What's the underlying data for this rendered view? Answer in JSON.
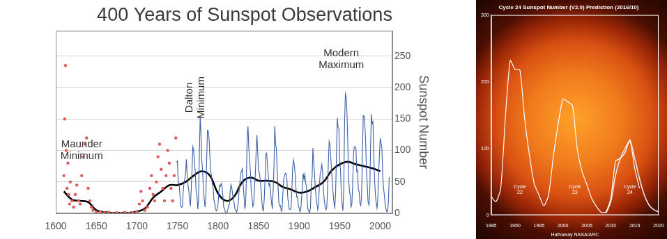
{
  "chart_data": [
    {
      "type": "line",
      "title": "400 Years of Sunspot Observations",
      "y_label": "Sunspot Number",
      "xlim": [
        1600,
        2015
      ],
      "xticks": [
        1600,
        1650,
        1700,
        1750,
        1800,
        1850,
        1900,
        1950,
        2000
      ],
      "ylim": [
        0,
        290
      ],
      "yticks": [
        0,
        50,
        100,
        150,
        200,
        250
      ],
      "grid": true,
      "annotations": [
        {
          "text": "Maunder Minimum",
          "x": 1632,
          "y": 100
        },
        {
          "text": "Dalton Minimum",
          "x": 1772,
          "y": 184
        },
        {
          "text": "Modern Maximum",
          "x": 1952,
          "y": 245
        }
      ],
      "series": [
        {
          "type": "scatter",
          "color": "#e05a5a",
          "marker": "circle",
          "x": [
            1610,
            1611,
            1612,
            1613,
            1614,
            1615,
            1616,
            1617,
            1618,
            1620,
            1622,
            1624,
            1626,
            1628,
            1630,
            1632,
            1634,
            1636,
            1638,
            1640,
            1642,
            1644,
            1646,
            1650,
            1655,
            1660,
            1665,
            1670,
            1675,
            1680,
            1685,
            1690,
            1695,
            1700,
            1703,
            1705,
            1707,
            1710,
            1713,
            1716,
            1718,
            1720,
            1722,
            1724,
            1726,
            1728,
            1730,
            1732,
            1734,
            1736,
            1738,
            1740,
            1742,
            1744,
            1746,
            1748
          ],
          "values": [
            60,
            150,
            235,
            100,
            40,
            80,
            30,
            15,
            50,
            20,
            10,
            30,
            45,
            20,
            15,
            60,
            90,
            110,
            120,
            40,
            20,
            10,
            5,
            2,
            3,
            1,
            2,
            0,
            1,
            0,
            2,
            0,
            1,
            3,
            15,
            35,
            20,
            5,
            10,
            40,
            60,
            30,
            20,
            50,
            90,
            110,
            70,
            40,
            20,
            60,
            100,
            80,
            40,
            20,
            60,
            120
          ]
        },
        {
          "type": "line",
          "color": "#3d5fa8",
          "x": [
            1749,
            1750,
            1751,
            1752,
            1753,
            1754,
            1755,
            1756,
            1757,
            1758,
            1759,
            1760,
            1761,
            1762,
            1763,
            1764,
            1765,
            1766,
            1767,
            1768,
            1769,
            1770,
            1771,
            1772,
            1773,
            1774,
            1775,
            1776,
            1777,
            1778,
            1779,
            1780,
            1781,
            1782,
            1783,
            1784,
            1785,
            1786,
            1787,
            1788,
            1789,
            1790,
            1791,
            1792,
            1793,
            1794,
            1795,
            1796,
            1797,
            1798,
            1799,
            1800,
            1801,
            1802,
            1803,
            1804,
            1805,
            1806,
            1807,
            1808,
            1809,
            1810,
            1811,
            1812,
            1813,
            1814,
            1815,
            1816,
            1817,
            1818,
            1819,
            1820,
            1821,
            1822,
            1823,
            1824,
            1825,
            1826,
            1827,
            1828,
            1829,
            1830,
            1831,
            1832,
            1833,
            1834,
            1835,
            1836,
            1837,
            1838,
            1839,
            1840,
            1841,
            1842,
            1843,
            1844,
            1845,
            1846,
            1847,
            1848,
            1849,
            1850,
            1851,
            1852,
            1853,
            1854,
            1855,
            1856,
            1857,
            1858,
            1859,
            1860,
            1861,
            1862,
            1863,
            1864,
            1865,
            1866,
            1867,
            1868,
            1869,
            1870,
            1871,
            1872,
            1873,
            1874,
            1875,
            1876,
            1877,
            1878,
            1879,
            1880,
            1881,
            1882,
            1883,
            1884,
            1885,
            1886,
            1887,
            1888,
            1889,
            1890,
            1891,
            1892,
            1893,
            1894,
            1895,
            1896,
            1897,
            1898,
            1899,
            1900,
            1901,
            1902,
            1903,
            1904,
            1905,
            1906,
            1907,
            1908,
            1909,
            1910,
            1911,
            1912,
            1913,
            1914,
            1915,
            1916,
            1917,
            1918,
            1919,
            1920,
            1921,
            1922,
            1923,
            1924,
            1925,
            1926,
            1927,
            1928,
            1929,
            1930,
            1931,
            1932,
            1933,
            1934,
            1935,
            1936,
            1937,
            1938,
            1939,
            1940,
            1941,
            1942,
            1943,
            1944,
            1945,
            1946,
            1947,
            1948,
            1949,
            1950,
            1951,
            1952,
            1953,
            1954,
            1955,
            1956,
            1957,
            1958,
            1959,
            1960,
            1961,
            1962,
            1963,
            1964,
            1965,
            1966,
            1967,
            1968,
            1969,
            1970,
            1971,
            1972,
            1973,
            1974,
            1975,
            1976,
            1977,
            1978,
            1979,
            1980,
            1981,
            1982,
            1983,
            1984,
            1985,
            1986,
            1987,
            1988,
            1989,
            1990,
            1991,
            1992,
            1993,
            1994,
            1995,
            1996,
            1997,
            1998,
            1999,
            2000,
            2001,
            2002,
            2003,
            2004,
            2005,
            2006,
            2007,
            2008,
            2009,
            2010,
            2011,
            2012
          ],
          "values": [
            80.9,
            83.4,
            47.7,
            47.8,
            30.7,
            12.2,
            9.6,
            10.2,
            32.4,
            47.6,
            54.0,
            62.9,
            85.9,
            61.2,
            45.1,
            36.4,
            20.9,
            11.4,
            37.8,
            69.8,
            106.1,
            100.8,
            81.6,
            66.5,
            34.8,
            30.6,
            7.0,
            19.8,
            92.5,
            154.4,
            125.9,
            84.8,
            68.1,
            38.5,
            22.8,
            10.2,
            24.1,
            82.9,
            132.0,
            130.9,
            118.1,
            89.9,
            66.6,
            60.0,
            46.9,
            41.0,
            21.3,
            16.0,
            6.4,
            4.1,
            6.8,
            14.5,
            34.0,
            45.0,
            43.1,
            47.5,
            42.2,
            28.1,
            10.1,
            8.1,
            2.5,
            0.0,
            1.4,
            5.0,
            12.2,
            13.9,
            35.4,
            45.8,
            41.0,
            30.1,
            23.9,
            15.6,
            6.6,
            4.0,
            1.8,
            8.5,
            16.6,
            36.3,
            49.6,
            64.2,
            67.0,
            70.9,
            47.8,
            27.5,
            8.5,
            13.2,
            56.9,
            121.5,
            138.3,
            103.2,
            85.7,
            64.6,
            36.7,
            24.2,
            10.7,
            15.0,
            40.1,
            61.5,
            98.5,
            124.7,
            96.3,
            66.6,
            64.5,
            54.1,
            39.0,
            20.6,
            6.7,
            4.3,
            22.7,
            54.8,
            93.8,
            95.8,
            77.2,
            59.1,
            44.0,
            47.0,
            30.5,
            16.3,
            7.3,
            37.6,
            74.0,
            139.0,
            111.2,
            101.6,
            66.2,
            44.7,
            17.0,
            11.3,
            12.4,
            3.4,
            6.0,
            32.3,
            54.3,
            59.7,
            63.7,
            63.5,
            52.2,
            25.4,
            13.1,
            6.8,
            6.3,
            7.1,
            35.6,
            73.0,
            85.1,
            78.0,
            64.0,
            41.8,
            26.2,
            26.7,
            12.1,
            9.5,
            2.7,
            5.0,
            24.4,
            42.0,
            63.5,
            53.8,
            62.0,
            48.5,
            43.9,
            18.6,
            5.7,
            3.6,
            1.4,
            9.6,
            47.4,
            57.1,
            103.9,
            80.6,
            63.6,
            37.6,
            26.1,
            14.2,
            5.8,
            16.7,
            44.3,
            63.9,
            69.0,
            77.8,
            64.9,
            35.7,
            21.2,
            11.1,
            5.7,
            8.7,
            36.1,
            79.7,
            114.4,
            109.6,
            88.8,
            67.8,
            47.5,
            30.6,
            16.3,
            9.6,
            33.2,
            92.6,
            151.6,
            136.3,
            134.7,
            83.9,
            69.4,
            31.5,
            13.9,
            4.4,
            38.0,
            141.7,
            190.2,
            184.8,
            159.0,
            112.3,
            53.9,
            37.6,
            27.9,
            10.2,
            15.1,
            47.0,
            93.8,
            105.9,
            105.5,
            104.5,
            66.6,
            68.9,
            38.0,
            34.5,
            15.5,
            12.6,
            27.5,
            92.5,
            155.4,
            154.6,
            140.4,
            115.9,
            66.6,
            45.9,
            17.9,
            13.4,
            29.4,
            100.2,
            157.6,
            142.6,
            145.7,
            94.3,
            54.6,
            29.9,
            17.5,
            8.6,
            21.5,
            64.3,
            93.3,
            119.6,
            111.0,
            104.0,
            63.7,
            40.4,
            29.8,
            15.2,
            7.5,
            2.9,
            3.1,
            16.5,
            55.7,
            57.6
          ]
        },
        {
          "type": "line",
          "color": "#000000",
          "x": [
            1610,
            1620,
            1630,
            1640,
            1650,
            1660,
            1670,
            1680,
            1690,
            1700,
            1710,
            1720,
            1730,
            1740,
            1750,
            1760,
            1770,
            1780,
            1790,
            1800,
            1810,
            1820,
            1830,
            1840,
            1850,
            1860,
            1870,
            1880,
            1890,
            1900,
            1910,
            1920,
            1930,
            1940,
            1950,
            1960,
            1970,
            1980,
            1990,
            2000
          ],
          "values": [
            35,
            22,
            20,
            18,
            5,
            2,
            1,
            1,
            1,
            3,
            8,
            25,
            35,
            45,
            45,
            50,
            60,
            67,
            60,
            32,
            20,
            27,
            50,
            57,
            52,
            52,
            50,
            42,
            38,
            33,
            35,
            42,
            50,
            68,
            78,
            82,
            78,
            75,
            72,
            67
          ]
        }
      ]
    },
    {
      "type": "line",
      "title": "Cycle 24 Sunspot Number (V2.0) Prediction (2016/10)",
      "source": "Hathaway NASA/ARC",
      "xlim": [
        1985,
        2020
      ],
      "xticks": [
        1985,
        1990,
        1995,
        2000,
        2005,
        2010,
        2015,
        2020
      ],
      "ylim": [
        0,
        300
      ],
      "yticks": [
        0,
        100,
        200,
        300
      ],
      "grid": false,
      "annotations": [
        {
          "text": "Cycle 22",
          "x": 1991,
          "y": 38
        },
        {
          "text": "Cycle 23",
          "x": 2002.5,
          "y": 38
        },
        {
          "text": "Cycle 24",
          "x": 2014,
          "y": 38
        }
      ],
      "series": [
        {
          "color": "#ffffff",
          "x": [
            1985,
            1986,
            1987,
            1988,
            1989,
            1990,
            1991,
            1992,
            1993,
            1994,
            1995,
            1996,
            1997,
            1998,
            1999,
            2000,
            2001,
            2002,
            2003,
            2004,
            2005,
            2006,
            2007,
            2008,
            2009,
            2010,
            2011,
            2012,
            2013,
            2014,
            2015,
            2016
          ],
          "values": [
            28,
            20,
            40,
            149,
            232,
            218,
            218,
            145,
            90,
            47,
            30,
            14,
            30,
            88,
            136,
            174,
            170,
            164,
            99,
            65,
            46,
            25,
            13,
            4,
            5,
            25,
            81,
            85,
            94,
            113,
            70,
            40
          ]
        },
        {
          "color": "#e8e8e8",
          "x": [
            2009,
            2010,
            2011,
            2012,
            2013,
            2014,
            2015,
            2016,
            2017,
            2018,
            2019,
            2020
          ],
          "values": [
            3,
            20,
            60,
            85,
            100,
            110,
            85,
            55,
            30,
            15,
            8,
            5
          ]
        }
      ]
    }
  ]
}
